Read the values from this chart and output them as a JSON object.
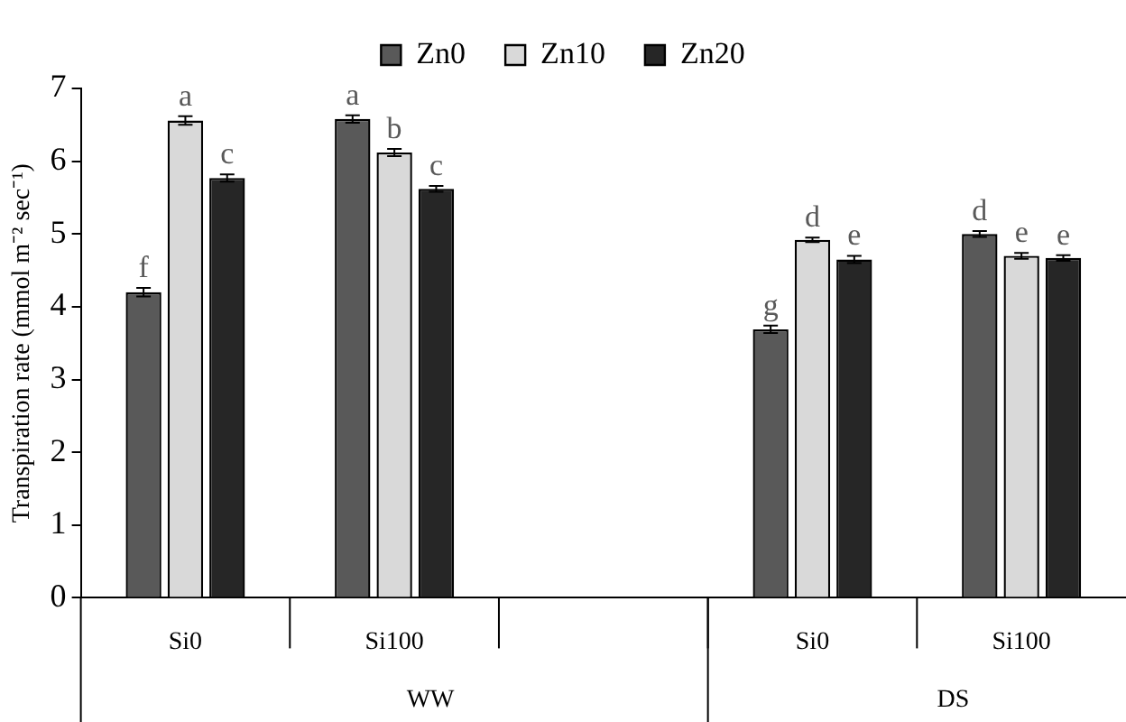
{
  "chart_data": {
    "type": "bar",
    "ylabel": "Transpiration rate (mmol m⁻² sec⁻¹)",
    "categories": [
      "Si0",
      "Si100",
      null,
      "Si0",
      "Si100"
    ],
    "series": [
      {
        "name": "Zn0",
        "color": "#595959",
        "values": [
          4.2,
          6.58,
          null,
          3.69,
          5.0
        ],
        "errors": [
          0.06,
          0.05,
          null,
          0.05,
          0.04
        ],
        "value_labels": [
          "f",
          "a",
          null,
          "g",
          "d"
        ]
      },
      {
        "name": "Zn10",
        "color": "#d9d9d9",
        "values": [
          6.56,
          6.12,
          null,
          4.92,
          4.7
        ],
        "errors": [
          0.06,
          0.05,
          null,
          0.03,
          0.04
        ],
        "value_labels": [
          "a",
          "b",
          null,
          "d",
          "e"
        ]
      },
      {
        "name": "Zn20",
        "color": "#262626",
        "values": [
          5.77,
          5.62,
          null,
          4.65,
          4.67
        ],
        "errors": [
          0.05,
          0.04,
          null,
          0.05,
          0.04
        ],
        "value_labels": [
          "c",
          "c",
          null,
          "e",
          "e"
        ]
      }
    ],
    "ylim": [
      0,
      7
    ],
    "yticks": [
      0,
      1,
      2,
      3,
      4,
      5,
      6,
      7
    ],
    "grid": false,
    "legend": "top",
    "annotations": [
      "WW",
      "DS"
    ]
  }
}
